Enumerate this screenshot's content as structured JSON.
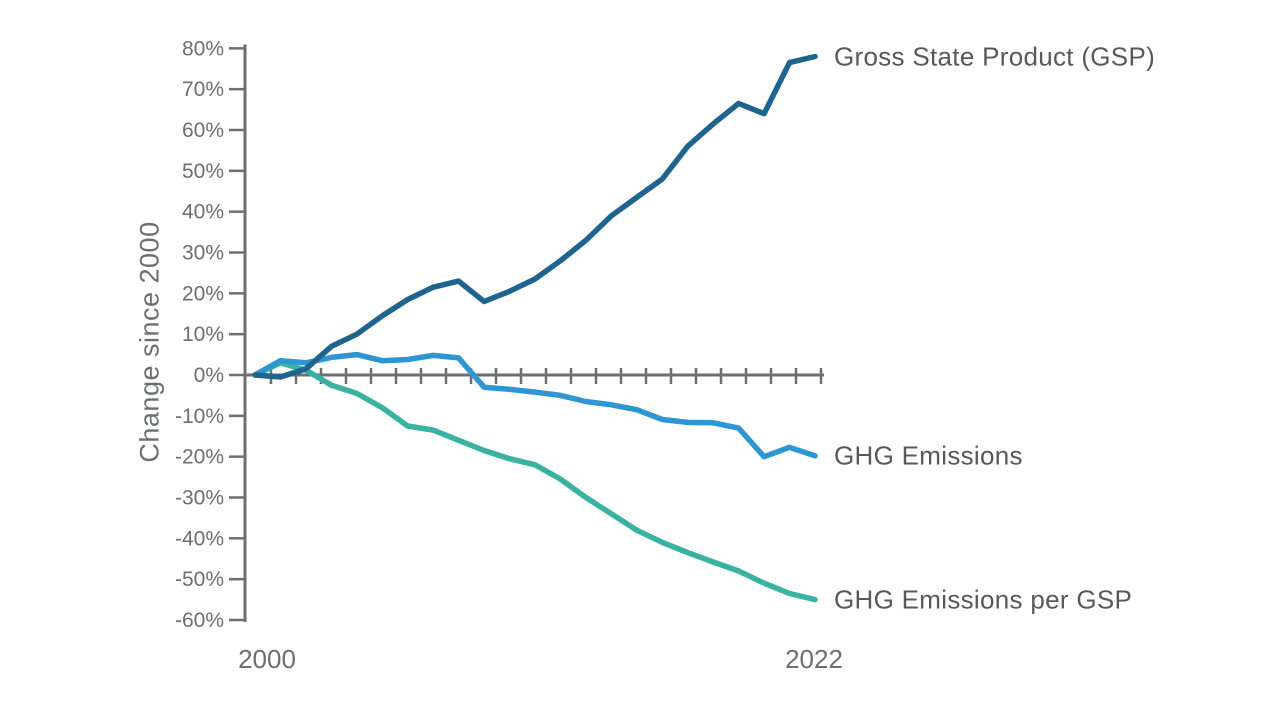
{
  "chart_data": {
    "type": "line",
    "title": "",
    "ylabel": "Change since 2000",
    "x_axis": {
      "start_label": "2000",
      "end_label": "2022"
    },
    "years": [
      2000,
      2001,
      2002,
      2003,
      2004,
      2005,
      2006,
      2007,
      2008,
      2009,
      2010,
      2011,
      2012,
      2013,
      2014,
      2015,
      2016,
      2017,
      2018,
      2019,
      2020,
      2021,
      2022
    ],
    "ylim": [
      -60,
      80
    ],
    "y_ticks": [
      80,
      70,
      60,
      50,
      40,
      30,
      20,
      10,
      0,
      -10,
      -20,
      -30,
      -40,
      -50,
      -60
    ],
    "y_tick_labels": [
      "80%",
      "70%",
      "60%",
      "50%",
      "40%",
      "30%",
      "20%",
      "10%",
      "0%",
      "-10%",
      "-20%",
      "-30%",
      "-40%",
      "-50%",
      "-60%"
    ],
    "grid": false,
    "legend_position": "right-of-line-ends",
    "series": [
      {
        "id": "gsp",
        "name": "Gross State Product (GSP)",
        "color": "#1f648e",
        "values": [
          0,
          -0.5,
          1.5,
          7,
          10,
          14.5,
          18.5,
          21.5,
          23,
          18,
          20.5,
          23.5,
          28,
          33,
          39,
          43.5,
          48,
          56,
          61.5,
          66.5,
          64,
          76.5,
          78
        ]
      },
      {
        "id": "ghg",
        "name": "GHG Emissions",
        "color": "#2e96d2",
        "values": [
          0,
          3.5,
          3,
          4.3,
          5,
          3.5,
          3.8,
          4.8,
          4.2,
          -3,
          -3.5,
          -4.2,
          -5,
          -6.5,
          -7.3,
          -8.5,
          -10.9,
          -11.6,
          -11.7,
          -13,
          -20,
          -17.7,
          -19.8
        ]
      },
      {
        "id": "ghg-per-gsp",
        "name": "GHG Emissions per GSP",
        "color": "#39b2a2",
        "values": [
          0,
          3,
          1.2,
          -2.5,
          -4.5,
          -8,
          -12.5,
          -13.5,
          -16,
          -18.5,
          -20.5,
          -22,
          -25.5,
          -30,
          -34,
          -38,
          -41,
          -43.5,
          -45.8,
          -48,
          -51,
          -53.5,
          -55
        ]
      }
    ],
    "colors": {
      "background": "#ffffff",
      "axis": "#6d6e71",
      "tick_text": "#6d6e71",
      "series_label_text": "#58595b"
    }
  }
}
